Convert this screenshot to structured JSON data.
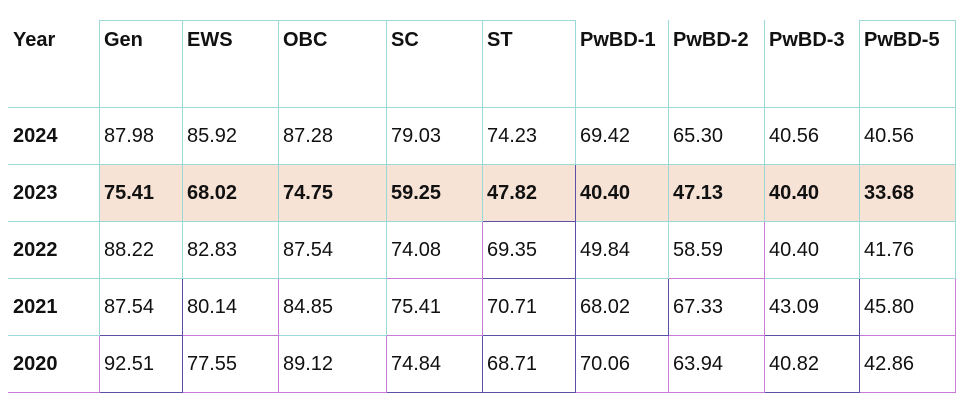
{
  "table": {
    "headers": [
      "Year",
      "Gen",
      "EWS",
      "OBC",
      "SC",
      "ST",
      "PwBD-1",
      "PwBD-2",
      "PwBD-3",
      "PwBD-5"
    ],
    "rows": [
      {
        "year": "2024",
        "values": [
          "87.98",
          "85.92",
          "87.28",
          "79.03",
          "74.23",
          "69.42",
          "65.30",
          "40.56",
          "40.56"
        ],
        "highlighted": false
      },
      {
        "year": "2023",
        "values": [
          "75.41",
          "68.02",
          "74.75",
          "59.25",
          "47.82",
          "40.40",
          "47.13",
          "40.40",
          "33.68"
        ],
        "highlighted": true
      },
      {
        "year": "2022",
        "values": [
          "88.22",
          "82.83",
          "87.54",
          "74.08",
          "69.35",
          "49.84",
          "58.59",
          "40.40",
          "41.76"
        ],
        "highlighted": false
      },
      {
        "year": "2021",
        "values": [
          "87.54",
          "80.14",
          "84.85",
          "75.41",
          "70.71",
          "68.02",
          "67.33",
          "43.09",
          "45.80"
        ],
        "highlighted": false
      },
      {
        "year": "2020",
        "values": [
          "92.51",
          "77.55",
          "89.12",
          "74.84",
          "68.71",
          "70.06",
          "63.94",
          "40.82",
          "42.86"
        ],
        "highlighted": false
      }
    ]
  },
  "colors": {
    "highlight_row": "#f7e3d6",
    "border_primary": "#9ad9d6"
  }
}
